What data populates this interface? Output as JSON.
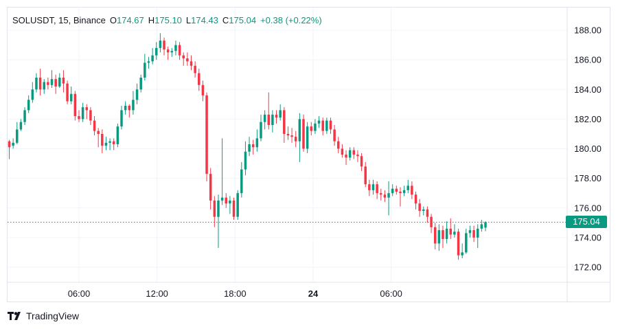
{
  "legend": {
    "symbol": "SOLUSDT, 15, Binance",
    "open_key": "O",
    "open": "174.67",
    "high_key": "H",
    "high": "175.10",
    "low_key": "L",
    "low": "174.43",
    "close_key": "C",
    "close": "175.04",
    "change": "+0.38 (+0.22%)"
  },
  "last_price_label": "175.04",
  "brand": "TradingView",
  "colors": {
    "up": "#089981",
    "down": "#f23645",
    "grid": "#f0f3fa",
    "axis_text": "#131722"
  },
  "chart_data": {
    "type": "candlestick",
    "interval": "15",
    "x_axis_labels": [
      "06:00",
      "12:00",
      "18:00",
      "24",
      "06:00"
    ],
    "y_axis_labels": [
      "188.00",
      "186.00",
      "184.00",
      "182.00",
      "180.00",
      "178.00",
      "176.00",
      "174.00",
      "172.00"
    ],
    "ylim": [
      171,
      189
    ],
    "last_price": 175.04,
    "grid": true,
    "candles": [
      [
        180.5,
        180.1,
        180.6,
        179.3
      ],
      [
        180.2,
        180.4,
        180.7,
        180.0
      ],
      [
        180.4,
        181.3,
        181.8,
        180.3
      ],
      [
        181.3,
        181.8,
        182.0,
        181.2
      ],
      [
        181.8,
        182.6,
        182.8,
        181.6
      ],
      [
        182.6,
        183.3,
        183.6,
        182.4
      ],
      [
        183.3,
        184.0,
        184.5,
        183.1
      ],
      [
        184.0,
        184.8,
        185.1,
        183.8
      ],
      [
        184.8,
        184.0,
        185.4,
        183.6
      ],
      [
        184.0,
        184.5,
        184.7,
        183.7
      ],
      [
        184.5,
        184.3,
        184.8,
        184.0
      ],
      [
        184.3,
        184.7,
        185.3,
        184.1
      ],
      [
        184.7,
        184.2,
        185.0,
        183.7
      ],
      [
        184.2,
        184.8,
        185.1,
        184.1
      ],
      [
        184.8,
        184.4,
        185.3,
        183.8
      ],
      [
        184.4,
        183.2,
        184.6,
        183.0
      ],
      [
        183.2,
        183.7,
        184.2,
        183.0
      ],
      [
        183.7,
        182.2,
        183.9,
        181.9
      ],
      [
        182.2,
        182.0,
        182.6,
        181.8
      ],
      [
        182.0,
        182.8,
        183.1,
        181.8
      ],
      [
        182.8,
        182.6,
        183.0,
        182.0
      ],
      [
        182.6,
        181.9,
        182.8,
        181.6
      ],
      [
        181.9,
        181.2,
        182.2,
        180.9
      ],
      [
        181.2,
        181.0,
        181.4,
        180.1
      ],
      [
        181.0,
        180.2,
        181.3,
        179.7
      ],
      [
        180.2,
        180.4,
        180.8,
        179.9
      ],
      [
        180.4,
        180.5,
        180.7,
        179.9
      ],
      [
        180.5,
        180.3,
        180.7,
        179.9
      ],
      [
        180.3,
        181.5,
        181.7,
        180.1
      ],
      [
        181.5,
        182.6,
        182.9,
        181.3
      ],
      [
        182.6,
        182.9,
        183.2,
        182.3
      ],
      [
        182.9,
        182.6,
        183.0,
        182.1
      ],
      [
        182.6,
        183.3,
        183.9,
        182.3
      ],
      [
        183.3,
        184.0,
        184.4,
        183.0
      ],
      [
        184.0,
        184.8,
        185.0,
        183.8
      ],
      [
        184.8,
        185.8,
        186.4,
        184.6
      ],
      [
        185.8,
        185.9,
        186.2,
        185.4
      ],
      [
        185.9,
        186.3,
        186.8,
        185.7
      ],
      [
        186.3,
        186.8,
        187.2,
        186.0
      ],
      [
        186.8,
        187.3,
        187.8,
        186.5
      ],
      [
        187.3,
        186.7,
        187.5,
        186.3
      ],
      [
        186.7,
        186.5,
        186.9,
        186.0
      ],
      [
        186.5,
        186.6,
        186.8,
        186.2
      ],
      [
        186.6,
        187.0,
        187.3,
        186.3
      ],
      [
        187.0,
        186.3,
        187.2,
        186.0
      ],
      [
        186.3,
        186.1,
        186.5,
        185.6
      ],
      [
        186.1,
        185.9,
        186.5,
        185.6
      ],
      [
        185.9,
        185.6,
        186.3,
        185.3
      ],
      [
        185.6,
        185.1,
        185.9,
        184.8
      ],
      [
        185.1,
        184.3,
        185.4,
        183.9
      ],
      [
        184.3,
        183.6,
        184.6,
        183.2
      ],
      [
        183.6,
        178.3,
        183.8,
        177.8
      ],
      [
        178.3,
        176.5,
        178.7,
        175.9
      ],
      [
        176.5,
        175.4,
        176.8,
        174.7
      ],
      [
        175.4,
        176.5,
        176.9,
        173.3
      ],
      [
        176.5,
        176.7,
        180.7,
        176.2
      ],
      [
        176.7,
        176.3,
        177.0,
        176.0
      ],
      [
        176.3,
        176.5,
        176.8,
        175.6
      ],
      [
        176.5,
        175.4,
        176.7,
        175.2
      ],
      [
        175.4,
        177.0,
        177.2,
        175.2
      ],
      [
        177.0,
        178.6,
        179.1,
        176.7
      ],
      [
        178.6,
        179.8,
        180.5,
        178.2
      ],
      [
        179.8,
        180.3,
        180.8,
        179.5
      ],
      [
        180.3,
        180.1,
        180.6,
        179.6
      ],
      [
        180.1,
        180.7,
        181.3,
        179.8
      ],
      [
        180.7,
        181.8,
        182.3,
        180.5
      ],
      [
        181.8,
        182.3,
        182.6,
        181.3
      ],
      [
        182.3,
        181.6,
        183.8,
        181.3
      ],
      [
        181.6,
        182.3,
        182.6,
        181.1
      ],
      [
        182.3,
        182.1,
        182.6,
        181.7
      ],
      [
        182.1,
        182.6,
        183.0,
        181.9
      ],
      [
        182.6,
        181.0,
        182.8,
        180.4
      ],
      [
        181.0,
        180.9,
        181.5,
        180.6
      ],
      [
        180.9,
        180.8,
        181.4,
        180.4
      ],
      [
        180.8,
        180.5,
        181.2,
        180.1
      ],
      [
        180.5,
        182.0,
        182.4,
        179.1
      ],
      [
        182.0,
        180.0,
        182.3,
        179.8
      ],
      [
        180.0,
        181.5,
        181.8,
        179.7
      ],
      [
        181.5,
        181.2,
        181.8,
        180.9
      ],
      [
        181.2,
        181.7,
        182.0,
        181.0
      ],
      [
        181.7,
        181.9,
        182.2,
        181.4
      ],
      [
        181.9,
        181.2,
        182.1,
        180.9
      ],
      [
        181.2,
        181.9,
        182.1,
        181.0
      ],
      [
        181.9,
        181.3,
        182.1,
        181.0
      ],
      [
        181.3,
        180.5,
        181.6,
        180.2
      ],
      [
        180.5,
        180.0,
        180.8,
        179.7
      ],
      [
        180.0,
        179.6,
        180.3,
        179.4
      ],
      [
        179.6,
        179.4,
        179.9,
        178.9
      ],
      [
        179.4,
        179.9,
        180.1,
        179.2
      ],
      [
        179.9,
        179.6,
        180.1,
        179.3
      ],
      [
        179.6,
        179.5,
        179.9,
        179.1
      ],
      [
        179.5,
        178.8,
        179.7,
        178.5
      ],
      [
        178.8,
        177.6,
        179.1,
        177.4
      ],
      [
        177.6,
        177.2,
        177.9,
        176.8
      ],
      [
        177.2,
        177.6,
        177.9,
        176.9
      ],
      [
        177.6,
        177.0,
        177.8,
        176.6
      ],
      [
        177.0,
        176.9,
        177.3,
        176.5
      ],
      [
        176.9,
        176.7,
        177.2,
        176.4
      ],
      [
        176.7,
        177.0,
        177.8,
        175.5
      ],
      [
        177.0,
        177.3,
        177.6,
        176.8
      ],
      [
        177.3,
        177.1,
        177.5,
        176.9
      ],
      [
        177.1,
        177.0,
        177.4,
        176.1
      ],
      [
        177.0,
        177.2,
        177.5,
        176.8
      ],
      [
        177.2,
        177.5,
        177.9,
        177.0
      ],
      [
        177.5,
        176.9,
        177.8,
        176.6
      ],
      [
        176.9,
        176.3,
        177.1,
        175.9
      ],
      [
        176.3,
        175.8,
        176.6,
        175.4
      ],
      [
        175.8,
        175.9,
        176.1,
        175.5
      ],
      [
        175.9,
        175.4,
        176.1,
        175.0
      ],
      [
        175.4,
        174.7,
        175.6,
        174.3
      ],
      [
        174.7,
        173.6,
        175.0,
        173.2
      ],
      [
        173.6,
        174.5,
        174.9,
        173.1
      ],
      [
        174.5,
        173.9,
        174.8,
        173.3
      ],
      [
        173.9,
        174.6,
        175.1,
        173.6
      ],
      [
        174.6,
        174.2,
        175.3,
        173.9
      ],
      [
        174.2,
        174.4,
        174.9,
        174.0
      ],
      [
        174.4,
        172.8,
        174.6,
        172.5
      ],
      [
        172.8,
        173.0,
        173.6,
        172.6
      ],
      [
        173.0,
        174.3,
        174.6,
        172.9
      ],
      [
        174.3,
        174.5,
        174.8,
        174.0
      ],
      [
        174.5,
        174.0,
        174.8,
        173.7
      ],
      [
        174.0,
        174.6,
        174.9,
        173.3
      ],
      [
        174.6,
        174.9,
        175.2,
        174.4
      ],
      [
        174.67,
        175.04,
        175.1,
        174.43
      ]
    ]
  }
}
